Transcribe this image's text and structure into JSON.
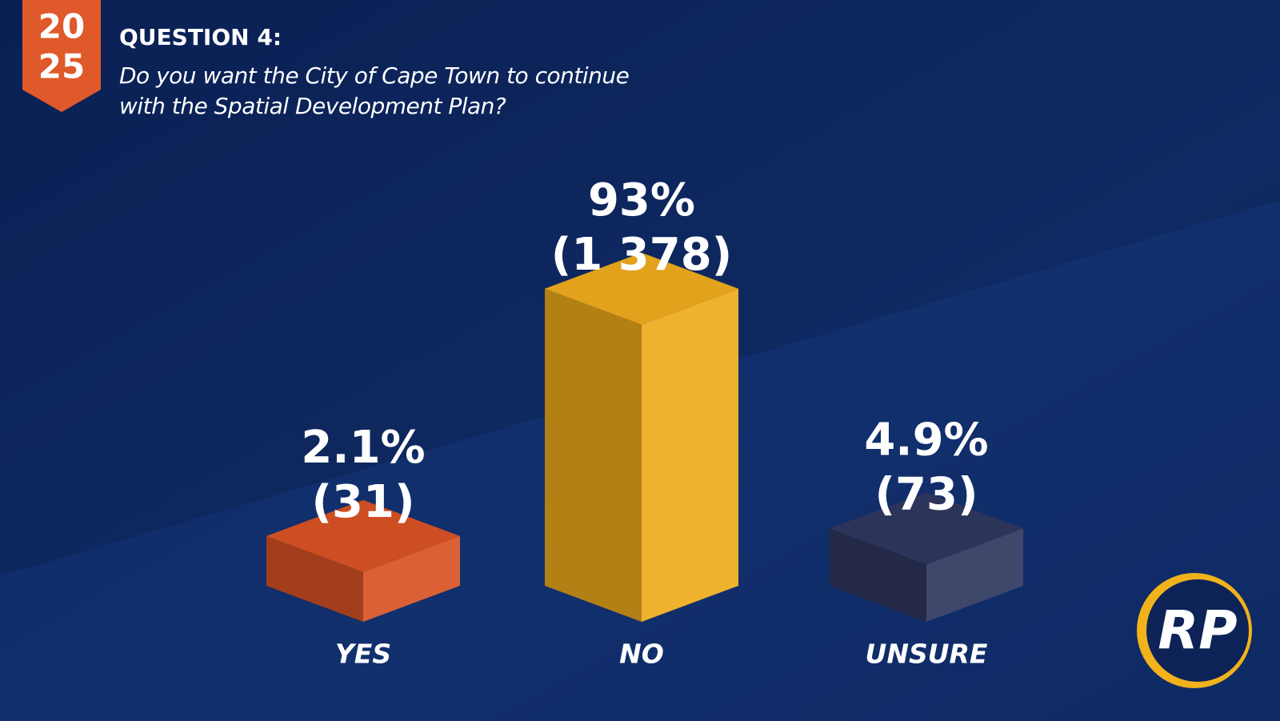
{
  "branding": {
    "year_lines": [
      "20",
      "25"
    ],
    "logo": "RP"
  },
  "chart_data": {
    "type": "bar3d",
    "title": "QUESTION 4:",
    "subtitle": "Do you want the City of Cape Town to continue with the Spatial Development Plan?",
    "categories": [
      "YES",
      "NO",
      "UNSURE"
    ],
    "values": [
      2.1,
      93,
      4.9
    ],
    "value_labels": [
      "2.1%",
      "93%",
      "4.9%"
    ],
    "counts": [
      31,
      1378,
      73
    ],
    "count_labels": [
      "(31)",
      "(1 378)",
      "(73)"
    ],
    "colors": [
      "#d85224",
      "#eeab1c",
      "#2e375e"
    ]
  }
}
